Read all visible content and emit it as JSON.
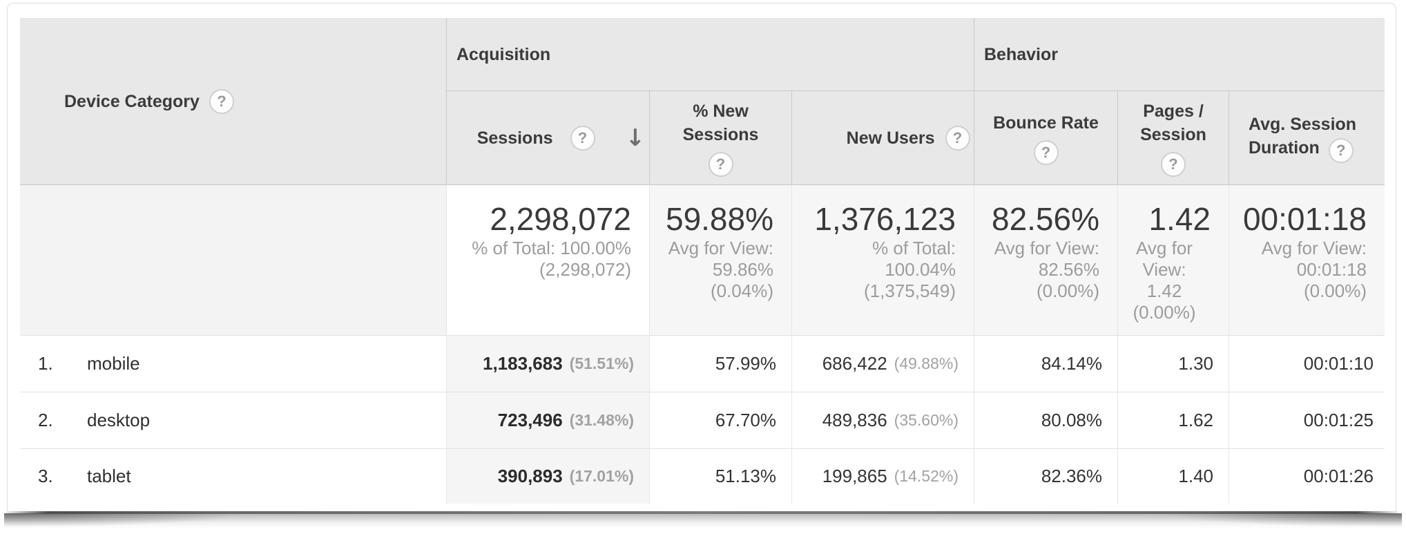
{
  "icons": {
    "help": "?",
    "sort_desc": "↓"
  },
  "table": {
    "dimension_header": {
      "label": "Device Category"
    },
    "groups": [
      {
        "label": "Acquisition"
      },
      {
        "label": "Behavior"
      }
    ],
    "metrics": [
      {
        "label": "Sessions"
      },
      {
        "label": "% New\nSessions"
      },
      {
        "label": "New Users"
      },
      {
        "label": "Bounce Rate"
      },
      {
        "label": "Pages /\nSession"
      },
      {
        "label": "Avg. Session\nDuration"
      }
    ],
    "totals": {
      "sessions": {
        "value": "2,298,072",
        "note": "% of Total: 100.00%\n(2,298,072)"
      },
      "pct_new_sessions": {
        "value": "59.88%",
        "note": "Avg for View:\n59.86%\n(0.04%)"
      },
      "new_users": {
        "value": "1,376,123",
        "note": "% of Total:\n100.04%\n(1,375,549)"
      },
      "bounce_rate": {
        "value": "82.56%",
        "note": "Avg for View:\n82.56%\n(0.00%)"
      },
      "pages_per_session": {
        "value": "1.42",
        "note": "Avg for\nView:\n1.42\n(0.00%)"
      },
      "avg_session_duration": {
        "value": "00:01:18",
        "note": "Avg for View:\n00:01:18\n(0.00%)"
      }
    },
    "rows": [
      {
        "rank": "1.",
        "device": "mobile",
        "sessions": "1,183,683",
        "sessions_share": "(51.51%)",
        "pct_new_sessions": "57.99%",
        "new_users": "686,422",
        "new_users_share": "(49.88%)",
        "bounce_rate": "84.14%",
        "pages_per_session": "1.30",
        "avg_session_duration": "00:01:10"
      },
      {
        "rank": "2.",
        "device": "desktop",
        "sessions": "723,496",
        "sessions_share": "(31.48%)",
        "pct_new_sessions": "67.70%",
        "new_users": "489,836",
        "new_users_share": "(35.60%)",
        "bounce_rate": "80.08%",
        "pages_per_session": "1.62",
        "avg_session_duration": "00:01:25"
      },
      {
        "rank": "3.",
        "device": "tablet",
        "sessions": "390,893",
        "sessions_share": "(17.01%)",
        "pct_new_sessions": "51.13%",
        "new_users": "199,865",
        "new_users_share": "(14.52%)",
        "bounce_rate": "82.36%",
        "pages_per_session": "1.40",
        "avg_session_duration": "00:01:26"
      }
    ]
  },
  "colors": {
    "header_bg": "#e8e8e8",
    "row_highlight": "#f5f5f5",
    "dark_text": "#3d3d3d",
    "muted_text": "#9c9c9c"
  }
}
